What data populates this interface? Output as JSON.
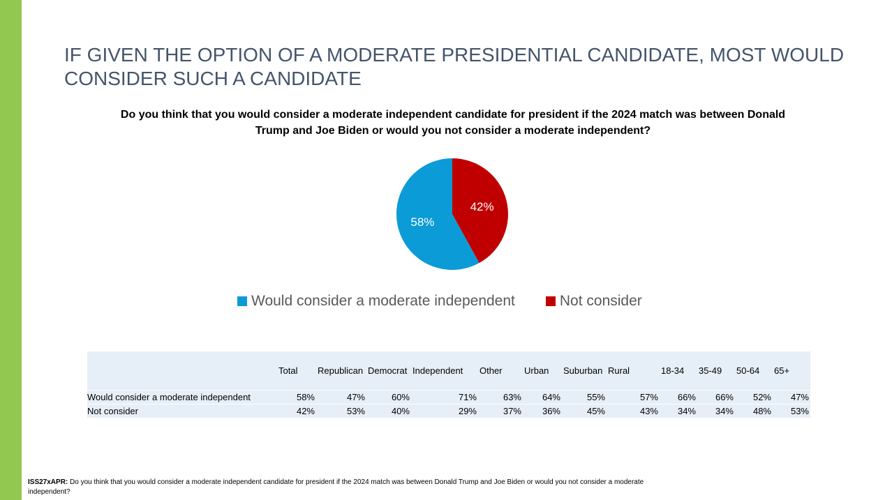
{
  "title": "IF GIVEN THE OPTION OF A MODERATE PRESIDENTIAL CANDIDATE, MOST WOULD CONSIDER SUCH A CANDIDATE",
  "question": "Do you think that you would consider a moderate independent candidate for president if the 2024 match was between Donald Trump and Joe Biden or would you not consider a moderate independent?",
  "chart_data": {
    "type": "pie",
    "slices": [
      {
        "name": "Would consider a moderate independent",
        "value": 58,
        "label": "58%",
        "color": "#0b9bd6"
      },
      {
        "name": "Not consider",
        "value": 42,
        "label": "42%",
        "color": "#c00000"
      }
    ],
    "legend_position": "bottom"
  },
  "table": {
    "columns": [
      "Total",
      "Republican",
      "Democrat",
      "Independent",
      "Other",
      "Urban",
      "Suburban",
      "Rural",
      "18-34",
      "35-49",
      "50-64",
      "65+"
    ],
    "rows": [
      {
        "label": "Would consider a moderate independent",
        "values": [
          "58%",
          "47%",
          "60%",
          "71%",
          "63%",
          "64%",
          "55%",
          "57%",
          "66%",
          "66%",
          "52%",
          "47%"
        ]
      },
      {
        "label": "Not consider",
        "values": [
          "42%",
          "53%",
          "40%",
          "29%",
          "37%",
          "36%",
          "45%",
          "43%",
          "34%",
          "34%",
          "48%",
          "53%"
        ]
      }
    ]
  },
  "footnote": {
    "code": "ISS27xAPR:",
    "text": " Do you think that you would consider a moderate independent candidate for president if the 2024 match was between Donald Trump and Joe Biden or would you not consider a moderate independent?"
  },
  "colors": {
    "accent": "#92c84f",
    "title": "#44546a",
    "table_bg": "#e6eef7"
  }
}
